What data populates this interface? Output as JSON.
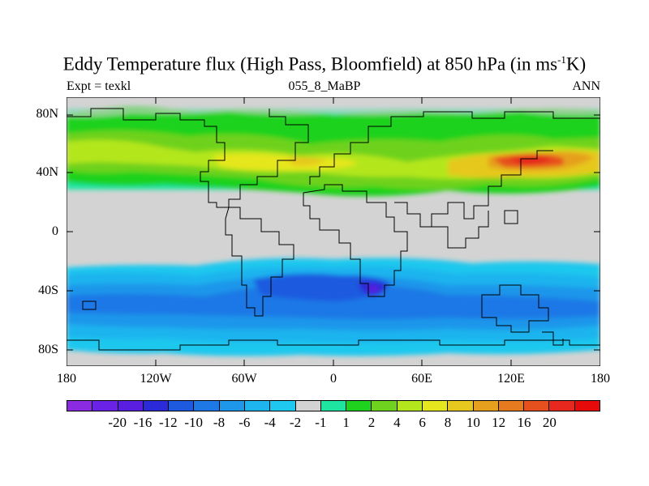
{
  "title": {
    "main": "Eddy Temperature flux (High Pass, Bloomfield) at 850 hPa (in ms",
    "sup": "-1",
    "unit_end": "K)"
  },
  "left_label": "Expt = texkl",
  "center_label": "055_8_MaBP",
  "right_label": "ANN",
  "lat_labels": [
    "80N",
    "40N",
    "0",
    "40S",
    "80S"
  ],
  "lon_labels": [
    "180",
    "120W",
    "60W",
    "0",
    "60E",
    "120E",
    "180"
  ],
  "colorbar": {
    "colors": [
      "#8a2be2",
      "#6a22e6",
      "#5a1ee0",
      "#2a2ad8",
      "#1e5ae0",
      "#1e78e6",
      "#1e96ea",
      "#1eb4ee",
      "#1ec8ee",
      "#d3d3d3",
      "#1ee6a0",
      "#1ed21e",
      "#6ed21e",
      "#b4e61e",
      "#e6e61e",
      "#e6c81e",
      "#e6a01e",
      "#e67a1e",
      "#e6501e",
      "#e6281e",
      "#e60a0a"
    ],
    "labels": [
      "-20",
      "-16",
      "-12",
      "-10",
      "-8",
      "-6",
      "-4",
      "-2",
      "-1",
      "1",
      "2",
      "4",
      "6",
      "8",
      "10",
      "12",
      "16",
      "20"
    ]
  },
  "colors": {
    "neutral": "#d3d3d3",
    "coast": "#000000"
  }
}
